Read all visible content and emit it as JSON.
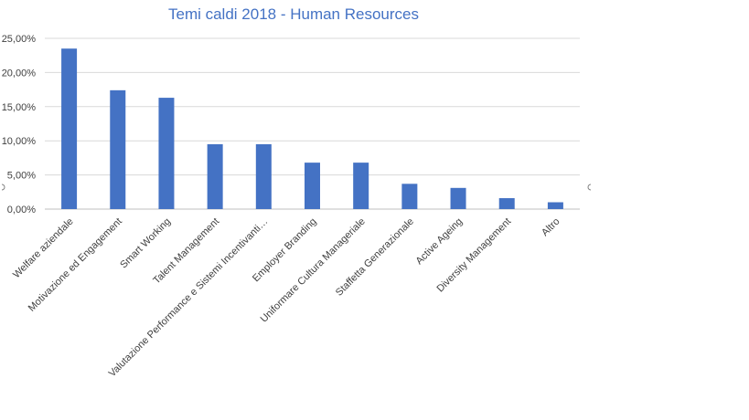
{
  "chart_data": {
    "type": "bar",
    "title": "Temi caldi 2018 - Human Resources",
    "xlabel": "",
    "ylabel": "",
    "ylim": [
      0,
      0.25
    ],
    "yticks": [
      0,
      0.05,
      0.1,
      0.15,
      0.2,
      0.25
    ],
    "ytick_labels": [
      "0,00%",
      "5,00%",
      "10,00%",
      "15,00%",
      "20,00%",
      "25,00%"
    ],
    "grid": true,
    "legend": "none",
    "bar_color": "#4472c4",
    "categories": [
      "Welfare aziendale",
      "Motivazione ed Engagement",
      "Smart Working",
      "Talent Management",
      "Valutazione Performance e Sistemi Incentivanti…",
      "Employer Branding",
      "Uniformare Cultura Manageriale",
      "Staffetta Generazionale",
      "Active Ageing",
      "Diversity Management",
      "Altro"
    ],
    "values": [
      0.235,
      0.174,
      0.163,
      0.095,
      0.095,
      0.068,
      0.068,
      0.037,
      0.031,
      0.016,
      0.01
    ]
  }
}
